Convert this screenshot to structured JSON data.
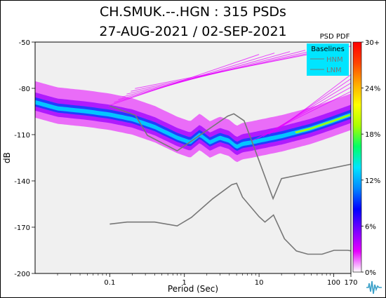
{
  "chart_data": {
    "type": "heatmap",
    "title": "CH.SMUK.--.HGN : 315 PSDs",
    "subtitle": "27-AUG-2021 / 02-SEP-2021",
    "xlabel": "Period (Sec)",
    "ylabel": "dB",
    "x_scale": "log",
    "xlim": [
      0.01,
      170
    ],
    "ylim": [
      -200,
      -50
    ],
    "x_ticks": [
      0.1,
      1,
      10,
      100,
      170
    ],
    "x_tick_labels": [
      "0.1",
      "1",
      "10",
      "100",
      "170"
    ],
    "y_ticks": [
      -200,
      -170,
      -140,
      -110,
      -80,
      -50
    ],
    "y_tick_labels": [
      "-200",
      "-170",
      "-140",
      "-110",
      "-80",
      "-50"
    ],
    "grid": false,
    "colorbar": {
      "title": "PSD PDF",
      "ticks": [
        0,
        6,
        12,
        18,
        24,
        30
      ],
      "tick_labels": [
        "0%",
        "6%",
        "12%",
        "18%",
        "24%",
        "30+"
      ],
      "colors": [
        "#ffffff",
        "#e600ff",
        "#7a00ff",
        "#0000ff",
        "#0088ff",
        "#00e5ff",
        "#00ff66",
        "#aaff00",
        "#ffff00",
        "#ffaa00",
        "#ff4400",
        "#ff0000"
      ]
    },
    "legend": {
      "title": "Baselines",
      "placement": "top-right",
      "entries": [
        "HNM",
        "LNM"
      ],
      "background": "#00e5ff"
    },
    "series": [
      {
        "name": "HNM",
        "color": "#777777",
        "x": [
          0.1,
          0.22,
          0.32,
          0.8,
          3.8,
          4.6,
          6.3,
          7.9,
          15.4,
          20,
          354.8
        ],
        "y": [
          -91.5,
          -97.4,
          -110.5,
          -120.5,
          -98.0,
          -96.5,
          -101.0,
          -113.5,
          -151.5,
          -138.5,
          -126.0
        ]
      },
      {
        "name": "LNM",
        "color": "#777777",
        "x": [
          0.1,
          0.17,
          0.4,
          0.8,
          1.24,
          2.4,
          4.3,
          5,
          6,
          10,
          12,
          15.6,
          21.9,
          31.6,
          45,
          70,
          101,
          154,
          328,
          600,
          10000
        ],
        "y": [
          -168.0,
          -166.7,
          -166.7,
          -169.2,
          -163.7,
          -151.5,
          -142.5,
          -141.5,
          -150.5,
          -163.2,
          -166.7,
          -162.1,
          -177.5,
          -185.4,
          -187.5,
          -187.5,
          -185.0,
          -185.0,
          -187.5,
          -184.4,
          -151.9
        ]
      }
    ],
    "pdf_mode": {
      "x": [
        0.01,
        0.02,
        0.05,
        0.1,
        0.2,
        0.4,
        0.8,
        1.2,
        1.6,
        2.2,
        3,
        4,
        5,
        6,
        8,
        10,
        20,
        50,
        100,
        170
      ],
      "y": [
        -89,
        -93,
        -95,
        -97,
        -100,
        -105,
        -112,
        -115,
        -110,
        -115,
        -112,
        -114,
        -118,
        -116,
        -115,
        -114,
        -111,
        -106,
        -101,
        -97
      ]
    }
  }
}
